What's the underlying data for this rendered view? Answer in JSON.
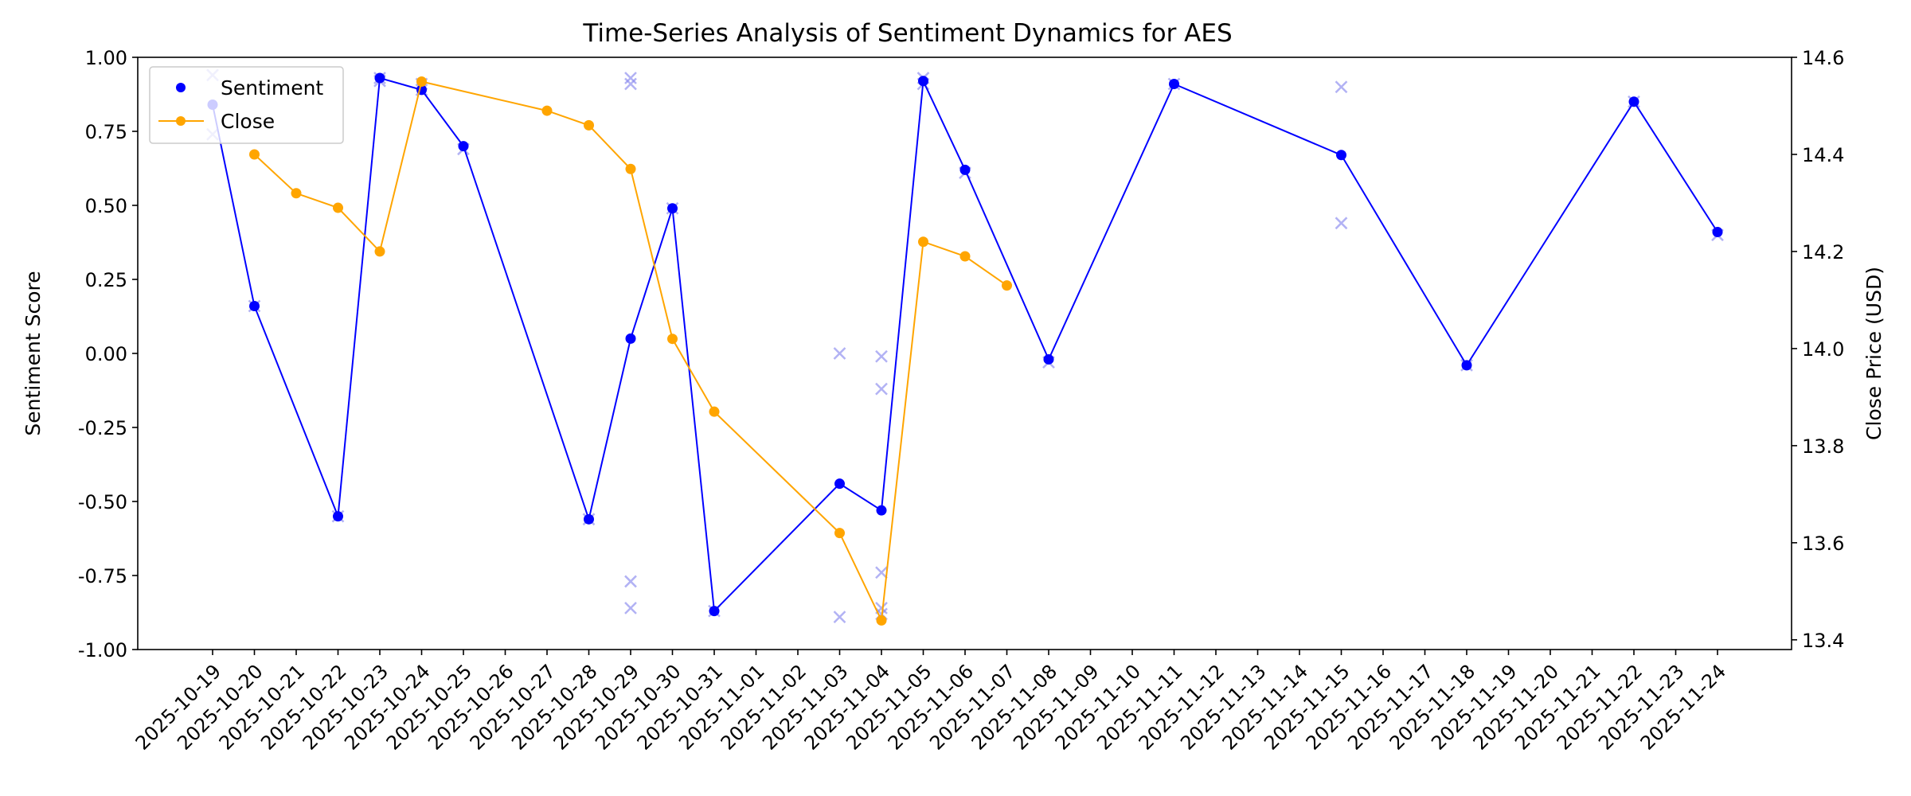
{
  "chart_data": {
    "type": "line",
    "title": "Time-Series Analysis of Sentiment Dynamics for AES",
    "xlabel": "",
    "ylabel": "Sentiment Score",
    "y2label": "Close Price (USD)",
    "ylim": [
      -1.0,
      1.0
    ],
    "y2lim": [
      13.38,
      14.6
    ],
    "yticks": [
      -1.0,
      -0.75,
      -0.5,
      -0.25,
      0.0,
      0.25,
      0.5,
      0.75,
      1.0
    ],
    "y2ticks": [
      13.4,
      13.6,
      13.8,
      14.0,
      14.2,
      14.4,
      14.6
    ],
    "x_dates": [
      "2025-10-19",
      "2025-10-20",
      "2025-10-21",
      "2025-10-22",
      "2025-10-23",
      "2025-10-24",
      "2025-10-25",
      "2025-10-26",
      "2025-10-27",
      "2025-10-28",
      "2025-10-29",
      "2025-10-30",
      "2025-10-31",
      "2025-11-01",
      "2025-11-02",
      "2025-11-03",
      "2025-11-04",
      "2025-11-05",
      "2025-11-06",
      "2025-11-07",
      "2025-11-08",
      "2025-11-09",
      "2025-11-10",
      "2025-11-11",
      "2025-11-12",
      "2025-11-13",
      "2025-11-14",
      "2025-11-15",
      "2025-11-16",
      "2025-11-17",
      "2025-11-18",
      "2025-11-19",
      "2025-11-20",
      "2025-11-21",
      "2025-11-22",
      "2025-11-23",
      "2025-11-24"
    ],
    "x_tick_labels": [
      "2025-10-19",
      "2025-10-20",
      "2025-10-21",
      "2025-10-22",
      "2025-10-23",
      "2025-10-24",
      "2025-10-25",
      "2025-10-26",
      "2025-10-27",
      "2025-10-28",
      "2025-10-29",
      "2025-10-30",
      "2025-10-31",
      "2025-11-01",
      "2025-11-02",
      "2025-11-03",
      "2025-11-04",
      "2025-11-05",
      "2025-11-06",
      "2025-11-07",
      "2025-11-08",
      "2025-11-09",
      "2025-11-10",
      "2025-11-11",
      "2025-11-12",
      "2025-11-13",
      "2025-11-14",
      "2025-11-15",
      "2025-11-16",
      "2025-11-17",
      "2025-11-18",
      "2025-11-19",
      "2025-11-20",
      "2025-11-21",
      "2025-11-22",
      "2025-11-23",
      "2025-11-24"
    ],
    "legend_position": "top-left",
    "grid": false,
    "series": [
      {
        "name": "Sentiment",
        "axis": "left",
        "color": "#0000ff",
        "points": [
          {
            "x": "2025-10-19",
            "y": 0.84
          },
          {
            "x": "2025-10-20",
            "y": 0.16
          },
          {
            "x": "2025-10-22",
            "y": -0.55
          },
          {
            "x": "2025-10-23",
            "y": 0.93
          },
          {
            "x": "2025-10-24",
            "y": 0.89
          },
          {
            "x": "2025-10-25",
            "y": 0.7
          },
          {
            "x": "2025-10-28",
            "y": -0.56
          },
          {
            "x": "2025-10-29",
            "y": 0.05
          },
          {
            "x": "2025-10-30",
            "y": 0.49
          },
          {
            "x": "2025-10-31",
            "y": -0.87
          },
          {
            "x": "2025-11-03",
            "y": -0.44
          },
          {
            "x": "2025-11-04",
            "y": -0.53
          },
          {
            "x": "2025-11-05",
            "y": 0.92
          },
          {
            "x": "2025-11-06",
            "y": 0.62
          },
          {
            "x": "2025-11-08",
            "y": -0.02
          },
          {
            "x": "2025-11-11",
            "y": 0.91
          },
          {
            "x": "2025-11-15",
            "y": 0.67
          },
          {
            "x": "2025-11-18",
            "y": -0.04
          },
          {
            "x": "2025-11-22",
            "y": 0.85
          },
          {
            "x": "2025-11-24",
            "y": 0.41
          }
        ]
      },
      {
        "name": "Close",
        "axis": "right",
        "color": "#ffa500",
        "points": [
          {
            "x": "2025-10-20",
            "y": 14.4
          },
          {
            "x": "2025-10-21",
            "y": 14.32
          },
          {
            "x": "2025-10-22",
            "y": 14.29
          },
          {
            "x": "2025-10-23",
            "y": 14.2
          },
          {
            "x": "2025-10-24",
            "y": 14.55
          },
          {
            "x": "2025-10-27",
            "y": 14.49
          },
          {
            "x": "2025-10-28",
            "y": 14.46
          },
          {
            "x": "2025-10-29",
            "y": 14.37
          },
          {
            "x": "2025-10-30",
            "y": 14.02
          },
          {
            "x": "2025-10-31",
            "y": 13.87
          },
          {
            "x": "2025-11-03",
            "y": 13.62
          },
          {
            "x": "2025-11-04",
            "y": 13.44
          },
          {
            "x": "2025-11-05",
            "y": 14.22
          },
          {
            "x": "2025-11-06",
            "y": 14.19
          },
          {
            "x": "2025-11-07",
            "y": 14.13
          }
        ]
      }
    ],
    "raw_scores": {
      "color": "#8888ee",
      "points": [
        {
          "x": "2025-10-19",
          "y": 0.94
        },
        {
          "x": "2025-10-19",
          "y": 0.74
        },
        {
          "x": "2025-10-20",
          "y": 0.16
        },
        {
          "x": "2025-10-22",
          "y": -0.55
        },
        {
          "x": "2025-10-23",
          "y": 0.93
        },
        {
          "x": "2025-10-23",
          "y": 0.92
        },
        {
          "x": "2025-10-24",
          "y": 0.91
        },
        {
          "x": "2025-10-24",
          "y": 0.89
        },
        {
          "x": "2025-10-25",
          "y": 0.69
        },
        {
          "x": "2025-10-28",
          "y": -0.56
        },
        {
          "x": "2025-10-29",
          "y": 0.93
        },
        {
          "x": "2025-10-29",
          "y": 0.91
        },
        {
          "x": "2025-10-29",
          "y": -0.77
        },
        {
          "x": "2025-10-29",
          "y": -0.86
        },
        {
          "x": "2025-10-30",
          "y": 0.49
        },
        {
          "x": "2025-10-31",
          "y": -0.87
        },
        {
          "x": "2025-11-03",
          "y": 0.0
        },
        {
          "x": "2025-11-03",
          "y": -0.89
        },
        {
          "x": "2025-11-04",
          "y": -0.01
        },
        {
          "x": "2025-11-04",
          "y": -0.12
        },
        {
          "x": "2025-11-04",
          "y": -0.74
        },
        {
          "x": "2025-11-04",
          "y": -0.86
        },
        {
          "x": "2025-11-04",
          "y": -0.88
        },
        {
          "x": "2025-11-05",
          "y": 0.93
        },
        {
          "x": "2025-11-05",
          "y": 0.91
        },
        {
          "x": "2025-11-06",
          "y": 0.61
        },
        {
          "x": "2025-11-08",
          "y": -0.03
        },
        {
          "x": "2025-11-11",
          "y": 0.91
        },
        {
          "x": "2025-11-15",
          "y": 0.9
        },
        {
          "x": "2025-11-15",
          "y": 0.44
        },
        {
          "x": "2025-11-18",
          "y": -0.04
        },
        {
          "x": "2025-11-22",
          "y": 0.85
        },
        {
          "x": "2025-11-24",
          "y": 0.4
        }
      ]
    }
  }
}
